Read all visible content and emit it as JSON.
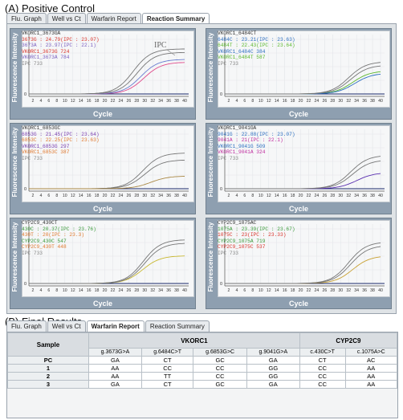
{
  "section_a": "(A) Positive Control",
  "section_b": "(B) Final Results",
  "tabs_top": [
    "Flu. Graph",
    "Well vs Ct",
    "Warfarin Report",
    "Reaction Summary"
  ],
  "tabs_top_active": 3,
  "tabs_bottom": [
    "Flu. Graph",
    "Well vs Ct",
    "Warfarin Report",
    "Reaction Summary"
  ],
  "tabs_bottom_active": 2,
  "axis": {
    "ylabel": "Fluorescence Intensity",
    "xlabel": "Cycle",
    "xticks": [
      "2",
      "4",
      "6",
      "8",
      "10",
      "12",
      "14",
      "16",
      "18",
      "20",
      "22",
      "24",
      "26",
      "28",
      "30",
      "32",
      "34",
      "36",
      "38",
      "40"
    ]
  },
  "ipc_annotation": "IPC",
  "panels": [
    {
      "title": "VKORC1_3673GA",
      "lines": [
        {
          "text": "3673G : 24.79(IPC : 23.07)",
          "color": "#d9342b"
        },
        {
          "text": "3673A : 23.97(IPC : 22.1)",
          "color": "#7a5fc0"
        },
        {
          "text": "VKORC1_3673G  724",
          "color": "#d9342b"
        },
        {
          "text": "VKORC1_3673A  784",
          "color": "#7a5fc0"
        },
        {
          "text": "IPC  733",
          "color": "#888888"
        }
      ],
      "curves": [
        {
          "color": "#e04a8a",
          "ct": 24.8,
          "top": 0.55
        },
        {
          "color": "#6a7fd0",
          "ct": 24.0,
          "top": 0.6
        },
        {
          "color": "#777777",
          "ct": 23.1,
          "top": 0.72
        },
        {
          "color": "#777777",
          "ct": 22.1,
          "top": 0.78
        }
      ]
    },
    {
      "title": "VKORC1_6484CT",
      "lines": [
        {
          "text": "6484C : 23.21(IPC : 23.63)",
          "color": "#2d6fc0"
        },
        {
          "text": "6484T : 22.43(IPC : 23.64)",
          "color": "#5cb82e"
        },
        {
          "text": "VKORC1_6484C  384",
          "color": "#2d6fc0"
        },
        {
          "text": "VKORC1_6484T  587",
          "color": "#5cb82e"
        },
        {
          "text": "IPC  733",
          "color": "#888888"
        }
      ],
      "curves": [
        {
          "color": "#5cb82e",
          "ct": 28.0,
          "top": 0.4
        },
        {
          "color": "#2d6fc0",
          "ct": 28.5,
          "top": 0.36
        },
        {
          "color": "#777777",
          "ct": 27.5,
          "top": 0.5
        },
        {
          "color": "#777777",
          "ct": 27.0,
          "top": 0.56
        }
      ]
    },
    {
      "title": "VKORC1_6853GC",
      "lines": [
        {
          "text": "6853G : 21.45(IPC : 23.64)",
          "color": "#7a3fb0"
        },
        {
          "text": "6853C : 22.25(IPC : 23.63)",
          "color": "#e07a30"
        },
        {
          "text": "VKORC1_6853G  297",
          "color": "#7a3fb0"
        },
        {
          "text": "VKORC1_6853C  387",
          "color": "#e07a30"
        },
        {
          "text": "IPC  733",
          "color": "#888888"
        }
      ],
      "curves": [
        {
          "color": "#777777",
          "ct": 25.0,
          "top": 0.5
        },
        {
          "color": "#777777",
          "ct": 24.5,
          "top": 0.62
        },
        {
          "color": "#aa8844",
          "ct": 26.5,
          "top": 0.22
        }
      ]
    },
    {
      "title": "VKORC1_9041GA",
      "lines": [
        {
          "text": "9041G : 22.88(IPC : 23.07)",
          "color": "#2d6fc0"
        },
        {
          "text": "9041A : 21(IPC : 22.1)",
          "color": "#c030a0"
        },
        {
          "text": "VKORC1_9041G  509",
          "color": "#2d6fc0"
        },
        {
          "text": "VKORC1_9041A  324",
          "color": "#c030a0"
        },
        {
          "text": "IPC  733",
          "color": "#888888"
        }
      ],
      "curves": [
        {
          "color": "#5a2fb0",
          "ct": 29.0,
          "top": 0.28
        },
        {
          "color": "#777777",
          "ct": 28.0,
          "top": 0.5
        },
        {
          "color": "#777777",
          "ct": 27.5,
          "top": 0.58
        }
      ]
    },
    {
      "title": "CYP2C9_430CT",
      "lines": [
        {
          "text": "430C : 20.37(IPC : 23.76)",
          "color": "#3a9a3a"
        },
        {
          "text": "430T : 20(IPC : 23.3)",
          "color": "#e07a30"
        },
        {
          "text": "CYP2C9_430C  547",
          "color": "#3a9a3a"
        },
        {
          "text": "CYP2C9_430T  448",
          "color": "#e07a30"
        },
        {
          "text": "IPC  733",
          "color": "#888888"
        }
      ],
      "curves": [
        {
          "color": "#c8b830",
          "ct": 24.5,
          "top": 0.48
        },
        {
          "color": "#777777",
          "ct": 25.0,
          "top": 0.7
        },
        {
          "color": "#777777",
          "ct": 24.6,
          "top": 0.76
        }
      ]
    },
    {
      "title": "CYP2C9_1075AC",
      "lines": [
        {
          "text": "1075A : 23.39(IPC : 23.67)",
          "color": "#3a9a3a"
        },
        {
          "text": "1075C : 23(IPC : 23.33)",
          "color": "#d9342b"
        },
        {
          "text": "CYP2C9_1075A  719",
          "color": "#3a9a3a"
        },
        {
          "text": "CYP2C9_1075C  537",
          "color": "#d9342b"
        },
        {
          "text": "IPC  733",
          "color": "#888888"
        }
      ],
      "curves": [
        {
          "color": "#c8a030",
          "ct": 28.0,
          "top": 0.48
        },
        {
          "color": "#777777",
          "ct": 27.5,
          "top": 0.66
        },
        {
          "color": "#777777",
          "ct": 27.0,
          "top": 0.72
        }
      ]
    }
  ],
  "results": {
    "sample_header": "Sample",
    "groups": [
      {
        "label": "VKORC1",
        "span": 4
      },
      {
        "label": "CYP2C9",
        "span": 2
      }
    ],
    "columns": [
      "g.3673G>A",
      "g.6484C>T",
      "g.6853G>C",
      "g.9041G>A",
      "c.430C>T",
      "c.1075A>C"
    ],
    "rows": [
      {
        "sample": "PC",
        "values": [
          "GA",
          "CT",
          "GC",
          "GA",
          "CT",
          "AC"
        ]
      },
      {
        "sample": "1",
        "values": [
          "AA",
          "CC",
          "CC",
          "GG",
          "CC",
          "AA"
        ]
      },
      {
        "sample": "2",
        "values": [
          "AA",
          "TT",
          "CC",
          "GG",
          "CC",
          "AA"
        ]
      },
      {
        "sample": "3",
        "values": [
          "GA",
          "CT",
          "GC",
          "GA",
          "CC",
          "AA"
        ]
      }
    ]
  }
}
